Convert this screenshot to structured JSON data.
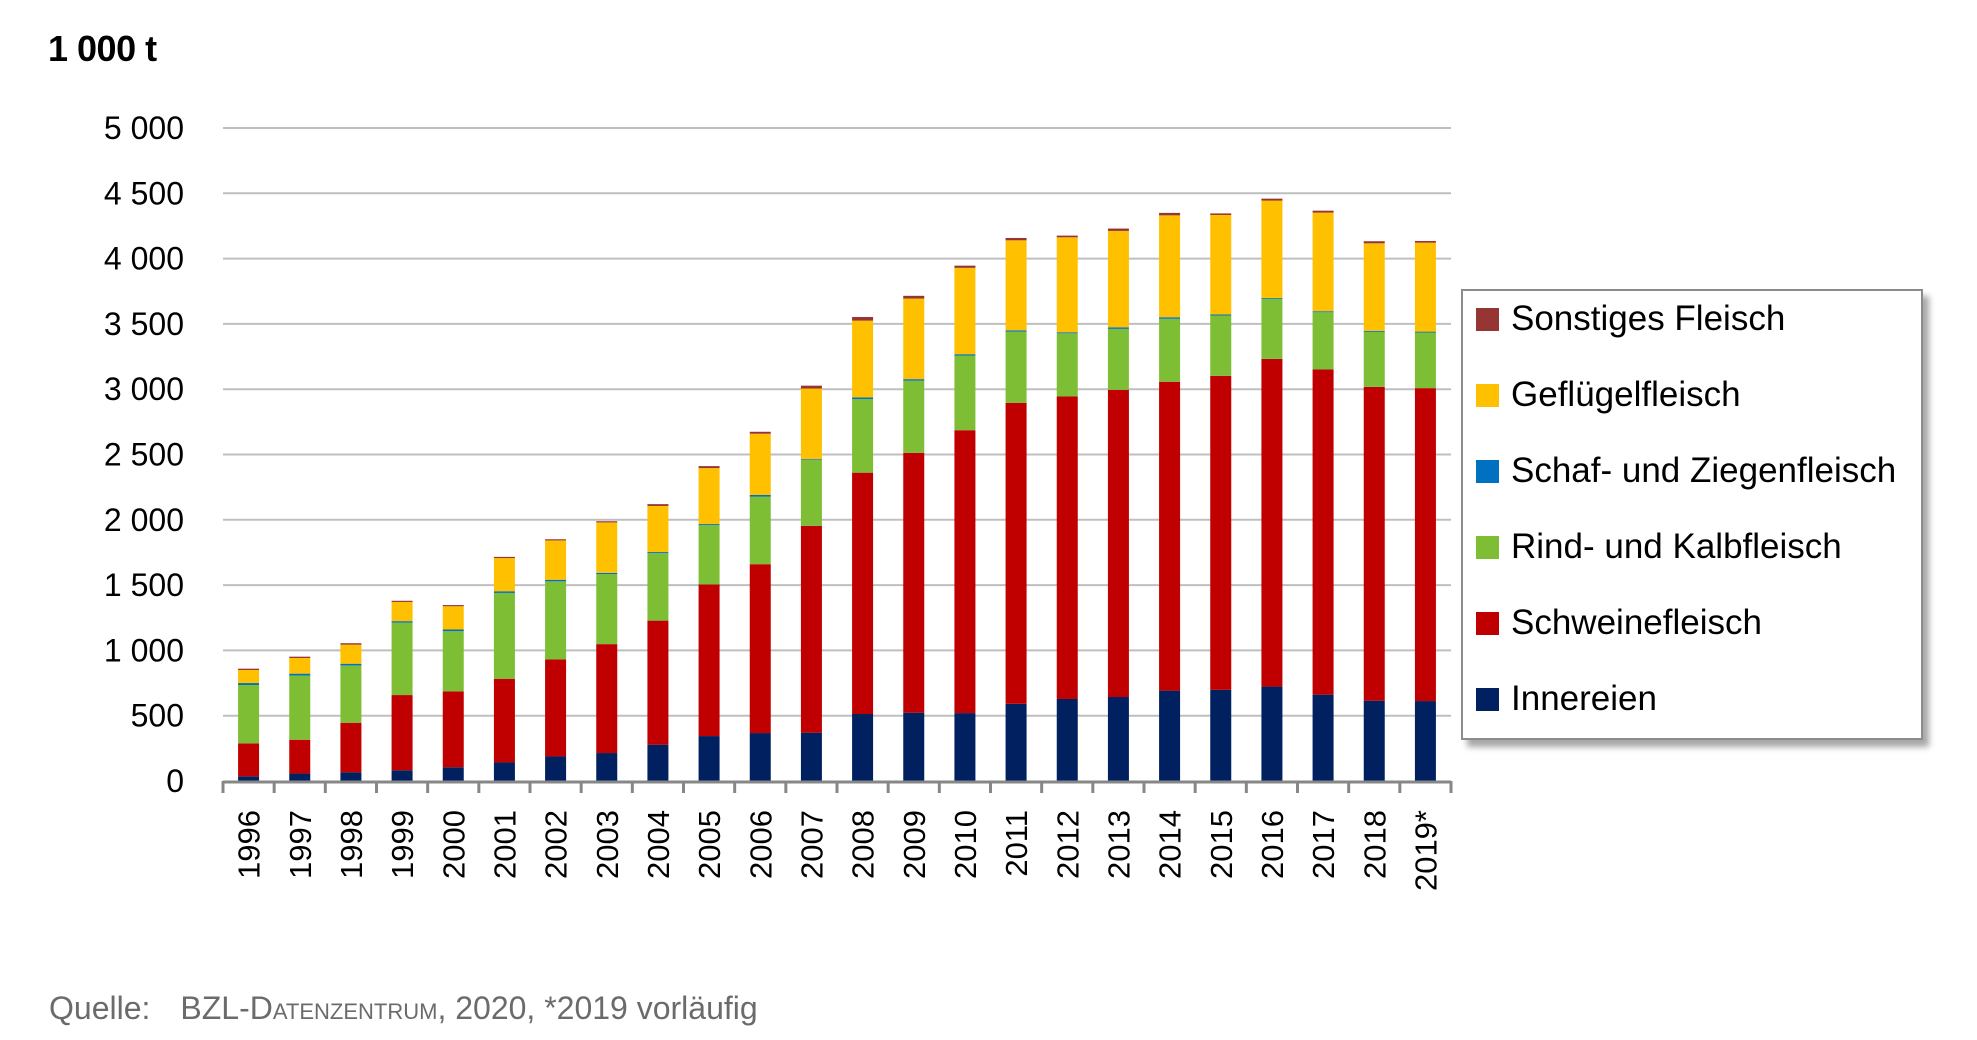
{
  "chart_data": {
    "type": "bar",
    "stacked": true,
    "title": "",
    "ylabel": "1 000 t",
    "xlabel": "",
    "ylim": [
      0,
      5000
    ],
    "yticks": [
      0,
      500,
      1000,
      1500,
      2000,
      2500,
      3000,
      3500,
      4000,
      4500,
      5000
    ],
    "ytick_labels": [
      "0",
      "500",
      "1 000",
      "1 500",
      "2 000",
      "2 500",
      "3 000",
      "3 500",
      "4 000",
      "4 500",
      "5 000"
    ],
    "grid": "horizontal",
    "legend_position": "right",
    "categories": [
      "1996",
      "1997",
      "1998",
      "1999",
      "2000",
      "2001",
      "2002",
      "2003",
      "2004",
      "2005",
      "2006",
      "2007",
      "2008",
      "2009",
      "2010",
      "2011",
      "2012",
      "2013",
      "2014",
      "2015",
      "2016",
      "2017",
      "2018",
      "2019*"
    ],
    "series": [
      {
        "name": "Innereien",
        "color": "#002060",
        "values": [
          36,
          57,
          66,
          82,
          105,
          142,
          188,
          214,
          278,
          344,
          367,
          370,
          513,
          523,
          520,
          591,
          628,
          643,
          692,
          698,
          723,
          661,
          615,
          612
        ]
      },
      {
        "name": "Schweinefleisch",
        "color": "#C00000",
        "values": [
          252,
          259,
          380,
          576,
          581,
          641,
          743,
          834,
          950,
          1161,
          1293,
          1583,
          1848,
          1990,
          2166,
          2305,
          2316,
          2352,
          2365,
          2404,
          2509,
          2490,
          2403,
          2396
        ]
      },
      {
        "name": "Rind- und Kalbfleisch",
        "color": "#7DBE35",
        "values": [
          447,
          492,
          439,
          555,
          461,
          657,
          598,
          536,
          517,
          456,
          517,
          504,
          563,
          552,
          572,
          545,
          484,
          467,
          482,
          462,
          460,
          438,
          421,
          426
        ]
      },
      {
        "name": "Schaf- und Ziegenfleisch",
        "color": "#0070C0",
        "values": [
          15,
          14,
          13,
          11,
          13,
          13,
          12,
          10,
          8,
          8,
          13,
          7,
          13,
          12,
          10,
          10,
          8,
          12,
          12,
          8,
          7,
          8,
          8,
          7
        ]
      },
      {
        "name": "Geflügelfleisch",
        "color": "#FFC000",
        "values": [
          100,
          120,
          146,
          147,
          178,
          254,
          301,
          386,
          353,
          427,
          469,
          541,
          588,
          617,
          661,
          689,
          727,
          738,
          780,
          762,
          745,
          755,
          670,
          681
        ]
      },
      {
        "name": "Sonstiges Fleisch",
        "color": "#963634",
        "values": [
          10,
          10,
          11,
          9,
          9,
          9,
          9,
          9,
          14,
          15,
          15,
          22,
          28,
          21,
          17,
          18,
          13,
          18,
          19,
          12,
          15,
          15,
          16,
          13
        ]
      }
    ],
    "legend_order": [
      "Sonstiges Fleisch",
      "Geflügelfleisch",
      "Schaf- und Ziegenfleisch",
      "Rind- und Kalbfleisch",
      "Schweinefleisch",
      "Innereien"
    ]
  },
  "unit_label": "1 000 t",
  "source": {
    "prefix": "Quelle:",
    "org_initial": "BZL-D",
    "org_rest": "atenzentrum",
    "suffix": ", 2020, *2019 vorläufig"
  }
}
